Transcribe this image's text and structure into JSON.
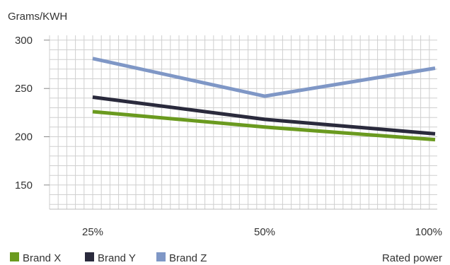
{
  "chart_data": {
    "type": "line",
    "title": "",
    "ylabel": "Grams/KWH",
    "xlabel": "Rated power",
    "categories": [
      "25%",
      "50%",
      "100%"
    ],
    "x_axis_note": "categories are evenly spaced",
    "ylim": [
      125,
      305
    ],
    "y_ticks": [
      150,
      200,
      250,
      300
    ],
    "grid": true,
    "legend_position": "bottom-left",
    "series": [
      {
        "name": "Brand X",
        "color": "#6a9a1f",
        "values": [
          226,
          210,
          197
        ]
      },
      {
        "name": "Brand Y",
        "color": "#2a2a3c",
        "values": [
          241,
          218,
          203
        ]
      },
      {
        "name": "Brand Z",
        "color": "#7f97c6",
        "values": [
          281,
          242,
          271
        ]
      }
    ]
  }
}
